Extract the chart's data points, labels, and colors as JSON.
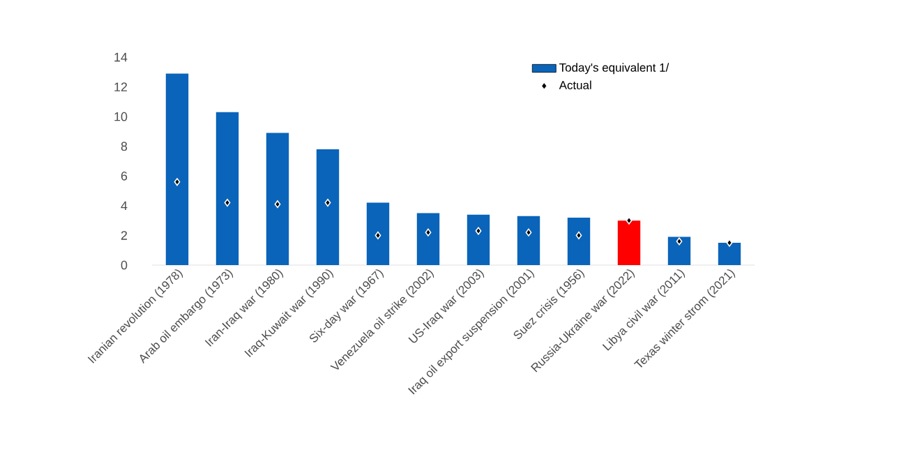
{
  "chart_data": {
    "type": "bar",
    "categories": [
      "Iranian revolution (1978)",
      "Arab oil embargo (1973)",
      "Iran-Iraq war (1980)",
      "Iraq-Kuwait war (1990)",
      "Six-day war (1967)",
      "Venezuela oil strike (2002)",
      "US-Iraq war (2003)",
      "Iraq oil export suspension (2001)",
      "Suez crisis (1956)",
      "Russia-Ukraine war (2022)",
      "Libya civil war (2011)",
      "Texas winter strom (2021)"
    ],
    "series": [
      {
        "name": "Today's equivalent 1/",
        "color": "#0a64b9",
        "colors": [
          "#0a64b9",
          "#0a64b9",
          "#0a64b9",
          "#0a64b9",
          "#0a64b9",
          "#0a64b9",
          "#0a64b9",
          "#0a64b9",
          "#0a64b9",
          "#ff0000",
          "#0a64b9",
          "#0a64b9"
        ],
        "values": [
          12.9,
          10.3,
          8.9,
          7.8,
          4.2,
          3.5,
          3.4,
          3.3,
          3.2,
          3.0,
          1.9,
          1.5
        ]
      },
      {
        "name": "Actual",
        "type": "scatter",
        "color": "#000000",
        "marker": "diamond",
        "values": [
          5.6,
          4.2,
          4.1,
          4.2,
          2.0,
          2.2,
          2.3,
          2.2,
          2.0,
          3.0,
          1.6,
          1.5
        ]
      }
    ],
    "ylim": [
      0,
      14
    ],
    "yticks": [
      0,
      2,
      4,
      6,
      8,
      10,
      12,
      14
    ],
    "grid": false,
    "legend": "top right"
  }
}
